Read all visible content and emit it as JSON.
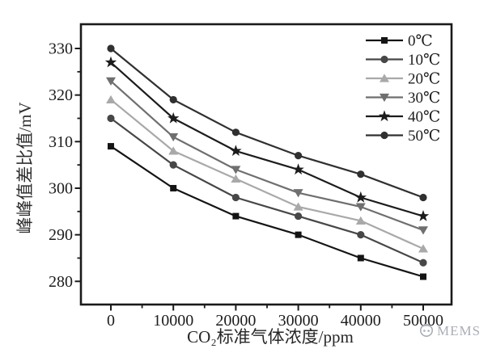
{
  "figure": {
    "background": "#ffffff",
    "axis_color": "#1a1a1a",
    "tick_label_color": "#1c1c1c",
    "watermark": {
      "text": "MEMS",
      "icon": "globe-icon",
      "color": "#a9aeb6"
    }
  },
  "chart_data": {
    "type": "line",
    "title": "",
    "xlabel": "CO₂标准气体浓度/ppm",
    "ylabel": "峰峰值差比值/mV",
    "x": [
      0,
      10000,
      20000,
      30000,
      40000,
      50000
    ],
    "xlim": [
      -5000,
      55000
    ],
    "ylim": [
      275,
      335
    ],
    "x_ticks": [
      0,
      10000,
      20000,
      30000,
      40000,
      50000
    ],
    "x_minor_ticks": [
      5000,
      15000,
      25000,
      35000,
      45000
    ],
    "y_ticks": [
      280,
      290,
      300,
      310,
      320,
      330
    ],
    "y_minor_ticks": [
      285,
      295,
      305,
      315,
      325
    ],
    "grid": false,
    "legend_position": "top-right-inside",
    "series": [
      {
        "name": "0℃",
        "marker": "square",
        "color": "#141414",
        "values": [
          309,
          300,
          294,
          290,
          285,
          281
        ]
      },
      {
        "name": "10℃",
        "marker": "circle",
        "color": "#474747",
        "values": [
          315,
          305,
          298,
          294,
          290,
          284
        ]
      },
      {
        "name": "20℃",
        "marker": "triangle-up",
        "color": "#a9a9a9",
        "values": [
          319,
          308,
          302,
          296,
          293,
          287
        ]
      },
      {
        "name": "30℃",
        "marker": "triangle-down",
        "color": "#6f6f6f",
        "values": [
          323,
          311,
          304,
          299,
          296,
          291
        ]
      },
      {
        "name": "40℃",
        "marker": "star",
        "color": "#1c1c1c",
        "values": [
          327,
          315,
          308,
          304,
          298,
          294
        ]
      },
      {
        "name": "50℃",
        "marker": "circle",
        "color": "#303030",
        "values": [
          330,
          319,
          312,
          307,
          303,
          298
        ]
      }
    ]
  }
}
